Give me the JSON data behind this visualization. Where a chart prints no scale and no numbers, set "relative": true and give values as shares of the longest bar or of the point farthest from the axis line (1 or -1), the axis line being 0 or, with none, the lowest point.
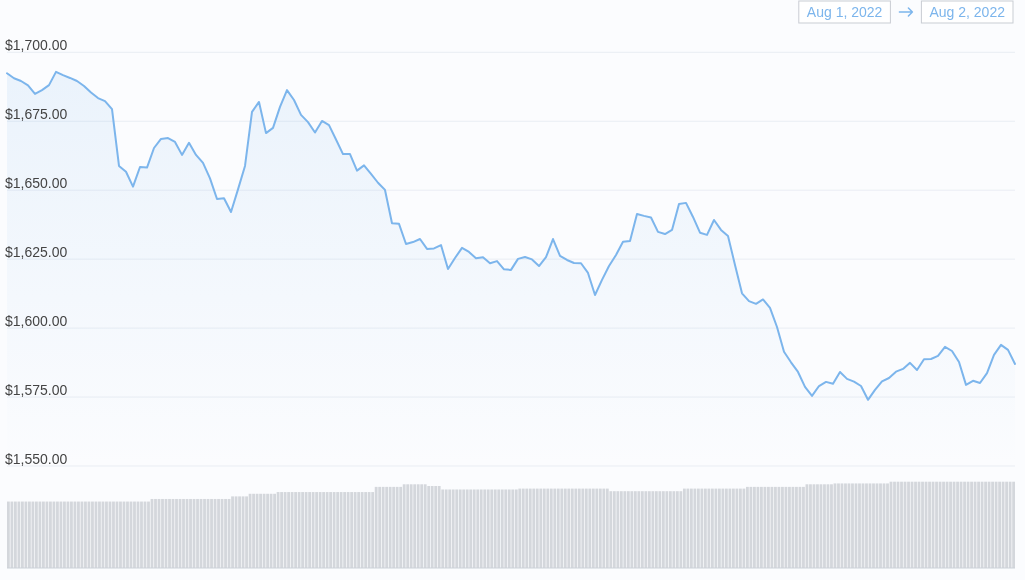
{
  "chart_data": [
    {
      "type": "area",
      "color": "#7cb5ec",
      "grid": "y",
      "tick_labels": "y",
      "annotations": [
        "Aug 1, 2022",
        "Aug 2, 2022"
      ],
      "ylim": [
        1550,
        1700
      ],
      "yticks": [
        {
          "value": 1550,
          "label": "$1,550.00"
        },
        {
          "value": 1575,
          "label": "$1,575.00"
        },
        {
          "value": 1600,
          "label": "$1,600.00"
        },
        {
          "value": 1625,
          "label": "$1,625.00"
        },
        {
          "value": 1650,
          "label": "$1,650.00"
        },
        {
          "value": 1675,
          "label": "$1,675.00"
        },
        {
          "value": 1700,
          "label": "$1,700.00"
        }
      ],
      "categories": [
        null,
        null,
        null,
        null,
        null,
        null,
        null,
        null,
        null,
        null,
        null,
        null,
        null,
        null,
        null,
        null,
        null,
        null,
        null,
        null,
        null,
        null,
        null,
        null,
        null,
        null,
        null,
        null,
        null,
        null,
        null,
        null,
        null,
        null,
        null,
        null,
        null,
        null,
        null,
        null,
        null,
        null,
        null,
        null,
        null,
        null,
        null,
        null,
        null,
        null,
        null,
        null,
        null,
        null,
        null,
        null,
        null,
        null,
        null,
        null,
        null,
        null,
        null,
        null,
        null,
        null,
        null,
        null,
        null,
        null,
        null,
        null,
        null,
        null,
        null,
        null,
        null,
        null,
        null,
        null,
        null,
        null,
        null,
        null,
        null,
        null,
        null,
        null,
        null,
        null,
        null,
        null,
        null,
        null,
        null,
        null,
        null,
        null,
        null,
        null,
        null,
        null,
        null,
        null,
        null,
        null,
        null,
        null,
        null,
        null,
        null,
        null,
        null,
        null,
        null,
        null,
        null,
        null,
        null,
        null,
        null,
        null,
        null,
        null,
        null,
        null,
        null,
        null,
        null,
        null,
        null,
        null,
        null,
        null,
        null,
        null,
        null,
        null,
        null,
        null,
        null,
        null,
        null,
        null,
        null
      ],
      "values": [
        1692.4,
        1690.6,
        1689.6,
        1688.0,
        1684.9,
        1686.3,
        1688.1,
        1692.9,
        1691.7,
        1690.7,
        1689.6,
        1687.8,
        1685.4,
        1683.4,
        1682.3,
        1679.4,
        1658.8,
        1656.7,
        1651.3,
        1658.4,
        1658.2,
        1665.3,
        1668.6,
        1668.9,
        1667.5,
        1662.8,
        1667.2,
        1662.8,
        1659.9,
        1654.3,
        1646.8,
        1647.1,
        1642.1,
        1650.3,
        1658.8,
        1678.4,
        1682.0,
        1670.7,
        1672.6,
        1680.2,
        1686.3,
        1682.7,
        1677.3,
        1674.7,
        1670.9,
        1675.1,
        1673.6,
        1668.4,
        1663.1,
        1663.1,
        1657.1,
        1659.0,
        1655.9,
        1652.7,
        1650.1,
        1638.0,
        1637.8,
        1630.5,
        1631.2,
        1632.3,
        1628.7,
        1628.9,
        1630.1,
        1621.4,
        1625.4,
        1629.1,
        1627.6,
        1625.3,
        1625.7,
        1623.5,
        1624.3,
        1621.3,
        1621.1,
        1625.1,
        1625.8,
        1624.9,
        1622.5,
        1625.7,
        1632.3,
        1626.2,
        1624.7,
        1623.6,
        1623.5,
        1620.0,
        1612.0,
        1617.5,
        1622.5,
        1626.5,
        1631.3,
        1631.6,
        1641.4,
        1640.7,
        1640.1,
        1634.9,
        1634.1,
        1635.6,
        1645.0,
        1645.4,
        1640.3,
        1634.6,
        1633.8,
        1639.2,
        1635.6,
        1633.4,
        1622.9,
        1612.6,
        1609.8,
        1608.8,
        1610.4,
        1607.3,
        1600.4,
        1591.4,
        1587.6,
        1584.1,
        1578.7,
        1575.4,
        1579.0,
        1580.5,
        1579.8,
        1584.1,
        1581.6,
        1580.6,
        1579.0,
        1574.0,
        1577.6,
        1580.7,
        1581.9,
        1584.2,
        1585.2,
        1587.4,
        1584.8,
        1588.7,
        1588.8,
        1589.9,
        1593.2,
        1591.7,
        1587.7,
        1579.4,
        1580.9,
        1580.1,
        1583.7,
        1590.3,
        1593.9,
        1592.1,
        1587.0
      ]
    },
    {
      "type": "bar",
      "color": "#d4d7dc",
      "relative": true,
      "tick_labels": false,
      "categories": [
        null,
        null,
        null,
        null,
        null,
        null,
        null,
        null,
        null,
        null,
        null,
        null,
        null,
        null,
        null,
        null,
        null,
        null,
        null,
        null,
        null,
        null,
        null,
        null,
        null,
        null,
        null,
        null,
        null,
        null,
        null,
        null,
        null,
        null,
        null,
        null,
        null,
        null,
        null,
        null,
        null,
        null,
        null,
        null,
        null,
        null,
        null,
        null,
        null,
        null,
        null,
        null,
        null,
        null,
        null,
        null,
        null,
        null,
        null,
        null,
        null,
        null,
        null,
        null,
        null,
        null,
        null,
        null,
        null,
        null,
        null,
        null,
        null,
        null,
        null,
        null,
        null,
        null,
        null,
        null,
        null,
        null,
        null,
        null,
        null,
        null,
        null,
        null,
        null,
        null,
        null,
        null,
        null,
        null,
        null,
        null,
        null,
        null,
        null,
        null,
        null,
        null,
        null,
        null,
        null,
        null,
        null,
        null,
        null,
        null,
        null,
        null,
        null,
        null,
        null,
        null,
        null,
        null,
        null,
        null,
        null,
        null,
        null,
        null,
        null,
        null,
        null,
        null,
        null,
        null,
        null,
        null,
        null,
        null,
        null,
        null,
        null,
        null,
        null,
        null,
        null,
        null,
        null,
        null,
        null,
        null,
        null,
        null,
        null,
        null,
        null,
        null,
        null,
        null,
        null,
        null,
        null,
        null,
        null,
        null,
        null,
        null,
        null,
        null,
        null,
        null,
        null,
        null,
        null,
        null,
        null,
        null,
        null,
        null,
        null,
        null,
        null,
        null,
        null,
        null,
        null,
        null,
        null,
        null,
        null,
        null,
        null,
        null,
        null,
        null,
        null,
        null,
        null,
        null,
        null,
        null,
        null,
        null,
        null,
        null,
        null,
        null,
        null,
        null,
        null,
        null,
        null,
        null,
        null,
        null,
        null,
        null,
        null,
        null,
        null,
        null,
        null,
        null,
        null,
        null,
        null,
        null,
        null,
        null,
        null,
        null,
        null,
        null,
        null,
        null,
        null,
        null,
        null,
        null,
        null,
        null,
        null,
        null,
        null,
        null,
        null,
        null,
        null,
        null,
        null,
        null,
        null,
        null,
        null,
        null,
        null,
        null,
        null,
        null,
        null,
        null,
        null,
        null,
        null,
        null,
        null,
        null,
        null,
        null,
        null,
        null,
        null,
        null,
        null,
        null,
        null,
        null,
        null,
        null,
        null,
        null,
        null,
        null,
        null,
        null,
        null,
        null,
        null,
        null,
        null,
        null,
        null,
        null
      ],
      "values": [
        0.77,
        0.77,
        0.77,
        0.77,
        0.77,
        0.77,
        0.77,
        0.77,
        0.77,
        0.77,
        0.77,
        0.77,
        0.77,
        0.77,
        0.77,
        0.77,
        0.77,
        0.77,
        0.77,
        0.77,
        0.77,
        0.77,
        0.77,
        0.77,
        0.77,
        0.77,
        0.77,
        0.77,
        0.77,
        0.77,
        0.77,
        0.77,
        0.77,
        0.77,
        0.77,
        0.77,
        0.77,
        0.77,
        0.77,
        0.77,
        0.77,
        0.8,
        0.8,
        0.8,
        0.8,
        0.8,
        0.8,
        0.8,
        0.8,
        0.8,
        0.8,
        0.8,
        0.8,
        0.8,
        0.8,
        0.8,
        0.8,
        0.8,
        0.8,
        0.8,
        0.8,
        0.8,
        0.8,
        0.8,
        0.83,
        0.83,
        0.83,
        0.83,
        0.83,
        0.86,
        0.86,
        0.86,
        0.86,
        0.86,
        0.86,
        0.86,
        0.86,
        0.88,
        0.88,
        0.88,
        0.88,
        0.88,
        0.88,
        0.88,
        0.88,
        0.88,
        0.88,
        0.88,
        0.88,
        0.88,
        0.88,
        0.88,
        0.88,
        0.88,
        0.88,
        0.88,
        0.88,
        0.88,
        0.88,
        0.88,
        0.88,
        0.88,
        0.88,
        0.88,
        0.88,
        0.94,
        0.94,
        0.94,
        0.94,
        0.94,
        0.94,
        0.94,
        0.94,
        0.97,
        0.97,
        0.97,
        0.97,
        0.97,
        0.97,
        0.97,
        0.95,
        0.95,
        0.95,
        0.95,
        0.91,
        0.91,
        0.91,
        0.91,
        0.91,
        0.91,
        0.91,
        0.91,
        0.91,
        0.91,
        0.91,
        0.91,
        0.91,
        0.91,
        0.91,
        0.91,
        0.91,
        0.91,
        0.91,
        0.91,
        0.91,
        0.91,
        0.92,
        0.92,
        0.92,
        0.92,
        0.92,
        0.92,
        0.92,
        0.92,
        0.92,
        0.92,
        0.92,
        0.92,
        0.92,
        0.92,
        0.92,
        0.92,
        0.92,
        0.92,
        0.92,
        0.92,
        0.92,
        0.92,
        0.92,
        0.92,
        0.92,
        0.92,
        0.89,
        0.89,
        0.89,
        0.89,
        0.89,
        0.89,
        0.89,
        0.89,
        0.89,
        0.89,
        0.89,
        0.89,
        0.89,
        0.89,
        0.89,
        0.89,
        0.89,
        0.89,
        0.89,
        0.89,
        0.89,
        0.92,
        0.92,
        0.92,
        0.92,
        0.92,
        0.92,
        0.92,
        0.92,
        0.92,
        0.92,
        0.92,
        0.92,
        0.92,
        0.92,
        0.92,
        0.92,
        0.92,
        0.92,
        0.94,
        0.94,
        0.94,
        0.94,
        0.94,
        0.94,
        0.94,
        0.94,
        0.94,
        0.94,
        0.94,
        0.94,
        0.94,
        0.94,
        0.94,
        0.94,
        0.94,
        0.97,
        0.97,
        0.97,
        0.97,
        0.97,
        0.97,
        0.97,
        0.97,
        0.98,
        0.98,
        0.98,
        0.98,
        0.98,
        0.98,
        0.98,
        0.98,
        0.98,
        0.98,
        0.98,
        0.98,
        0.98,
        0.98,
        0.98,
        0.98,
        1,
        1,
        1,
        1,
        1,
        1,
        1,
        1,
        1,
        1,
        1,
        1,
        1,
        1,
        1,
        1,
        1,
        1,
        1,
        1,
        1,
        1,
        1,
        1,
        1,
        1,
        1,
        1,
        1,
        1,
        1,
        1,
        1,
        1,
        1,
        1
      ]
    }
  ]
}
